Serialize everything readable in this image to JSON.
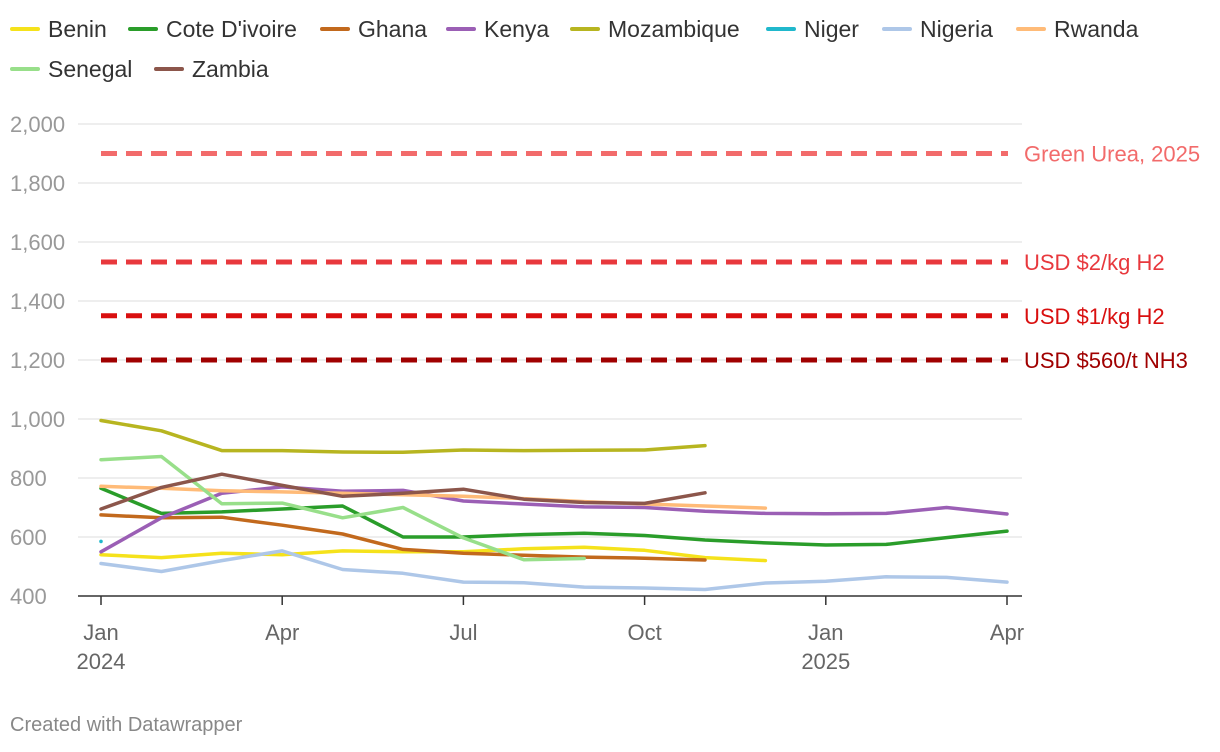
{
  "chart_data": {
    "type": "line",
    "ylim": [
      400,
      2000
    ],
    "y_ticks": [
      400,
      600,
      800,
      1000,
      1200,
      1400,
      1600,
      1800,
      2000
    ],
    "y_tick_labels": [
      "400",
      "600",
      "800",
      "1,000",
      "1,200",
      "1,400",
      "1,600",
      "1,800",
      "2,000"
    ],
    "x_months": [
      "2024-01",
      "2024-02",
      "2024-03",
      "2024-04",
      "2024-05",
      "2024-06",
      "2024-07",
      "2024-08",
      "2024-09",
      "2024-10",
      "2024-11",
      "2024-12",
      "2025-01",
      "2025-02",
      "2025-03",
      "2025-04"
    ],
    "x_ticks": [
      {
        "month_index": 0,
        "label": "Jan",
        "sublabel": "2024"
      },
      {
        "month_index": 3,
        "label": "Apr",
        "sublabel": ""
      },
      {
        "month_index": 6,
        "label": "Jul",
        "sublabel": ""
      },
      {
        "month_index": 9,
        "label": "Oct",
        "sublabel": ""
      },
      {
        "month_index": 12,
        "label": "Jan",
        "sublabel": "2025"
      },
      {
        "month_index": 15,
        "label": "Apr",
        "sublabel": ""
      }
    ],
    "series": [
      {
        "name": "Benin",
        "color": "#f5e21b",
        "values": [
          540,
          530,
          545,
          540,
          553,
          550,
          550,
          560,
          565,
          555,
          530,
          520,
          null,
          null,
          null,
          null
        ]
      },
      {
        "name": "Cote D'ivoire",
        "color": "#2a9d2a",
        "values": [
          765,
          680,
          685,
          695,
          705,
          600,
          600,
          608,
          613,
          605,
          590,
          580,
          573,
          575,
          598,
          620
        ]
      },
      {
        "name": "Ghana",
        "color": "#c2691d",
        "values": [
          675,
          665,
          667,
          640,
          610,
          558,
          545,
          538,
          532,
          528,
          522,
          null,
          null,
          null,
          null,
          null
        ]
      },
      {
        "name": "Kenya",
        "color": "#9b5fb5",
        "values": [
          550,
          665,
          748,
          770,
          755,
          758,
          722,
          712,
          702,
          700,
          687,
          680,
          679,
          680,
          700,
          678
        ]
      },
      {
        "name": "Mozambique",
        "color": "#b7b520",
        "values": [
          995,
          960,
          893,
          893,
          888,
          887,
          895,
          893,
          894,
          895,
          910,
          null,
          null,
          null,
          null,
          null
        ]
      },
      {
        "name": "Niger",
        "color": "#20b8cc",
        "values": [
          585,
          null,
          null,
          null,
          null,
          null,
          null,
          null,
          null,
          null,
          null,
          null,
          null,
          null,
          null,
          null
        ]
      },
      {
        "name": "Nigeria",
        "color": "#aec7e8",
        "values": [
          510,
          483,
          520,
          553,
          490,
          477,
          447,
          445,
          430,
          427,
          422,
          444,
          450,
          465,
          463,
          447
        ]
      },
      {
        "name": "Rwanda",
        "color": "#ffbb78",
        "values": [
          772,
          765,
          757,
          753,
          748,
          743,
          738,
          730,
          720,
          712,
          705,
          698,
          null,
          null,
          null,
          null
        ]
      },
      {
        "name": "Senegal",
        "color": "#98df8a",
        "values": [
          862,
          873,
          713,
          715,
          665,
          700,
          597,
          523,
          527,
          null,
          null,
          null,
          null,
          null,
          null,
          null
        ]
      },
      {
        "name": "Zambia",
        "color": "#8c564b",
        "values": [
          695,
          768,
          813,
          775,
          738,
          748,
          762,
          728,
          717,
          714,
          750,
          null,
          null,
          null,
          null,
          null
        ]
      }
    ],
    "reference_lines": [
      {
        "value": 1900,
        "label": "Green Urea, 2025",
        "color": "#f26b6b"
      },
      {
        "value": 1532,
        "label": "USD $2/kg H2",
        "color": "#e8383d"
      },
      {
        "value": 1350,
        "label": "USD $1/kg H2",
        "color": "#d90f0f"
      },
      {
        "value": 1200,
        "label": "USD $560/t NH3",
        "color": "#a00000"
      }
    ]
  },
  "footer": {
    "credit": "Created with Datawrapper"
  }
}
